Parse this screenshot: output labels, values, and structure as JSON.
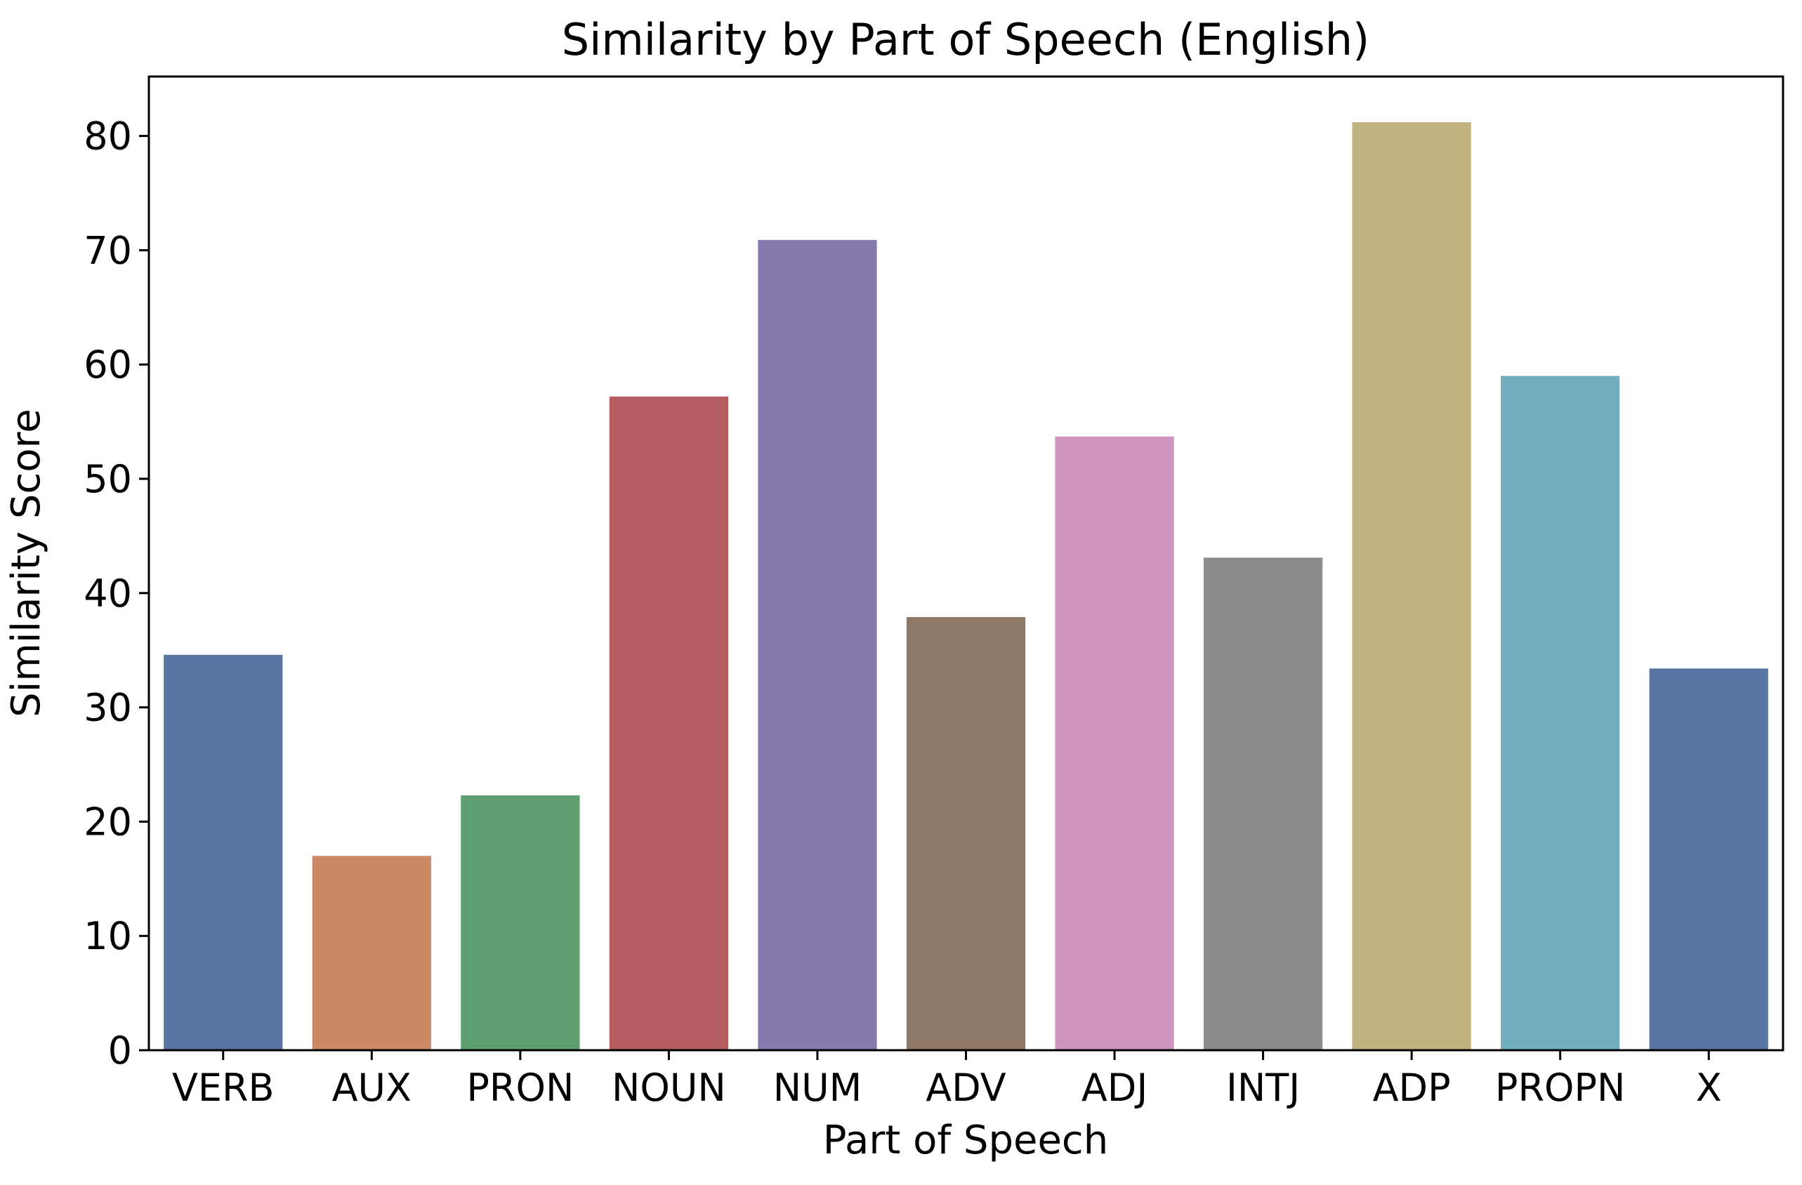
{
  "chart_data": {
    "type": "bar",
    "title": "Similarity by Part of Speech (English)",
    "xlabel": "Part of Speech",
    "ylabel": "Similarity Score",
    "categories": [
      "VERB",
      "AUX",
      "PRON",
      "NOUN",
      "NUM",
      "ADV",
      "ADJ",
      "INTJ",
      "ADP",
      "PROPN",
      "X"
    ],
    "values": [
      34.6,
      17.0,
      22.3,
      57.2,
      70.9,
      37.9,
      53.7,
      43.1,
      81.2,
      59.0,
      33.4
    ],
    "colors": [
      "#5875a4",
      "#cc8963",
      "#5f9e6e",
      "#b55d60",
      "#857aab",
      "#8d7866",
      "#d095bf",
      "#8c8c8c",
      "#c1b37f",
      "#71aec0",
      "#5875a4"
    ],
    "ylim": [
      0,
      85.2
    ],
    "yticks": [
      0,
      10,
      20,
      30,
      40,
      50,
      60,
      70,
      80
    ],
    "grid": false,
    "legend": "none"
  }
}
